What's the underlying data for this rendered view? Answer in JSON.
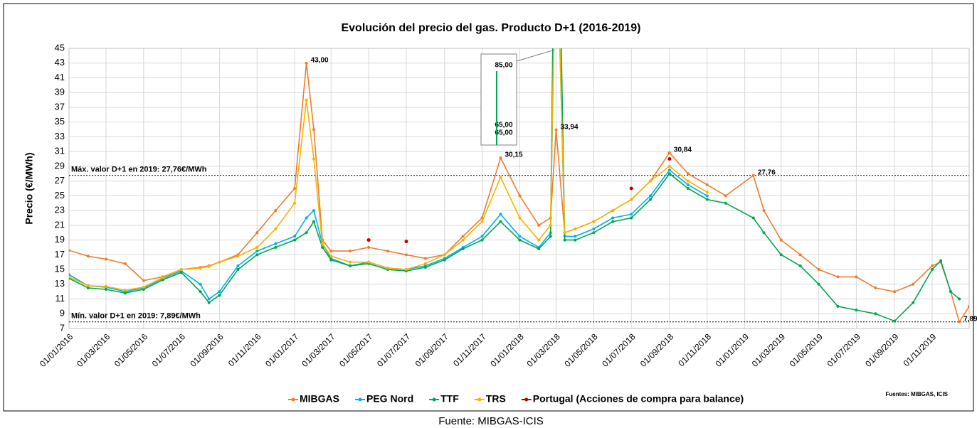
{
  "chart_data": {
    "type": "line",
    "title": "Evolución del precio del gas. Producto D+1 (2016-2019)",
    "y_label": "Precio (€/MWh)",
    "source_note": "Fuentes: MIBGAS, ICIS",
    "caption": "Fuente: MIBGAS-ICIS",
    "grid": true,
    "legend": "bottom",
    "ylim": [
      7,
      45
    ],
    "yticks": [
      7,
      9,
      11,
      13,
      15,
      17,
      19,
      21,
      23,
      25,
      27,
      29,
      31,
      33,
      35,
      37,
      39,
      41,
      43,
      45
    ],
    "xlim": [
      "01/01/2016",
      "31/12/2019"
    ],
    "xticks": [
      "01/01/2016",
      "01/03/2016",
      "01/05/2016",
      "01/07/2016",
      "01/09/2016",
      "01/11/2016",
      "01/01/2017",
      "01/03/2017",
      "01/05/2017",
      "01/07/2017",
      "01/09/2017",
      "01/11/2017",
      "01/01/2018",
      "01/03/2018",
      "01/05/2018",
      "01/07/2018",
      "01/09/2018",
      "01/11/2018",
      "01/01/2019",
      "01/03/2019",
      "01/05/2019",
      "01/07/2019",
      "01/09/2019",
      "01/11/2019"
    ],
    "reference_lines": [
      {
        "value": 27.76,
        "label": "Máx. valor D+1 en 2019: 27,76€/MWh"
      },
      {
        "value": 7.89,
        "label": "Mín. valor D+1 en 2019: 7,89€/MWh"
      }
    ],
    "x": [
      "01/01/2016",
      "01/02/2016",
      "01/03/2016",
      "01/04/2016",
      "01/05/2016",
      "01/06/2016",
      "01/07/2016",
      "01/08/2016",
      "15/08/2016",
      "01/09/2016",
      "01/10/2016",
      "01/11/2016",
      "01/12/2016",
      "01/01/2017",
      "20/01/2017",
      "01/02/2017",
      "15/02/2017",
      "01/03/2017",
      "01/04/2017",
      "01/05/2017",
      "01/06/2017",
      "01/07/2017",
      "01/08/2017",
      "01/09/2017",
      "01/10/2017",
      "01/11/2017",
      "01/12/2017",
      "01/01/2018",
      "01/02/2018",
      "20/02/2018",
      "01/03/2018",
      "15/03/2018",
      "01/04/2018",
      "01/05/2018",
      "01/06/2018",
      "01/07/2018",
      "01/08/2018",
      "01/09/2018",
      "01/10/2018",
      "01/11/2018",
      "01/12/2018",
      "15/01/2019",
      "01/02/2019",
      "01/03/2019",
      "01/04/2019",
      "01/05/2019",
      "01/06/2019",
      "01/07/2019",
      "01/08/2019",
      "01/09/2019",
      "01/10/2019",
      "01/11/2019",
      "15/11/2019",
      "01/12/2019",
      "15/12/2019",
      "31/12/2019"
    ],
    "series": [
      {
        "name": "MIBGAS",
        "color": "#ed7d31",
        "style": "line",
        "values": [
          17.6,
          16.8,
          16.4,
          15.8,
          13.5,
          14.0,
          15.0,
          15.3,
          15.5,
          16.0,
          17.0,
          20.0,
          23.0,
          26.0,
          43.0,
          34.0,
          19.0,
          17.5,
          17.5,
          18.0,
          17.5,
          17.0,
          16.5,
          17.0,
          19.5,
          22.0,
          30.15,
          25.0,
          21.0,
          22.0,
          33.94,
          20.0,
          20.5,
          21.5,
          23.0,
          24.5,
          27.0,
          30.84,
          28.0,
          26.5,
          25.0,
          27.76,
          23.0,
          19.0,
          17.0,
          15.0,
          14.0,
          14.0,
          12.5,
          12.0,
          13.0,
          15.5,
          16.0,
          12.0,
          7.89,
          10.0
        ],
        "value_labels": [
          null,
          null,
          null,
          null,
          null,
          null,
          null,
          null,
          null,
          null,
          null,
          null,
          null,
          null,
          "43,00",
          null,
          null,
          null,
          null,
          null,
          null,
          null,
          null,
          null,
          null,
          null,
          "30,15",
          null,
          null,
          null,
          "33,94",
          null,
          null,
          null,
          null,
          null,
          null,
          "30,84",
          null,
          null,
          null,
          "27,76",
          null,
          null,
          null,
          null,
          null,
          null,
          null,
          null,
          null,
          null,
          null,
          null,
          "7,89",
          null
        ]
      },
      {
        "name": "PEG Nord",
        "color": "#00b0f0",
        "style": "line",
        "values": [
          14.3,
          12.8,
          12.6,
          12.0,
          12.5,
          13.8,
          14.8,
          13.0,
          11.0,
          12.0,
          15.5,
          17.5,
          18.5,
          19.5,
          22.0,
          23.0,
          18.5,
          16.5,
          15.5,
          16.0,
          15.2,
          15.0,
          15.5,
          16.5,
          18.0,
          19.5,
          22.5,
          19.5,
          18.0,
          20.0,
          65,
          19.5,
          19.5,
          20.5,
          22.0,
          22.5,
          25.0,
          28.5,
          26.5,
          25.0,
          null,
          null,
          null,
          null,
          null,
          null,
          null,
          null,
          null,
          null,
          null,
          null,
          null,
          null,
          null,
          null
        ],
        "value_labels": [
          null,
          null,
          null,
          null,
          null,
          null,
          null,
          null,
          null,
          null,
          null,
          null,
          null,
          null,
          null,
          null,
          null,
          null,
          null,
          null,
          null,
          null,
          null,
          null,
          null,
          null,
          null,
          null,
          null,
          null,
          "65,00",
          null,
          null,
          null,
          null,
          null,
          null,
          null,
          null,
          null,
          null,
          null,
          null,
          null,
          null,
          null,
          null,
          null,
          null,
          null,
          null,
          null,
          null,
          null,
          null,
          null
        ]
      },
      {
        "name": "TTF",
        "color": "#00a651",
        "style": "line",
        "values": [
          13.8,
          12.5,
          12.3,
          11.8,
          12.3,
          13.6,
          14.6,
          12.0,
          10.5,
          11.5,
          15.0,
          17.0,
          18.0,
          19.0,
          20.0,
          21.5,
          18.0,
          16.3,
          15.5,
          15.8,
          15.0,
          14.8,
          15.3,
          16.3,
          17.8,
          19.0,
          21.5,
          19.0,
          17.8,
          19.5,
          85,
          19.0,
          19.0,
          20.0,
          21.5,
          22.0,
          24.5,
          28.0,
          26.0,
          24.5,
          24.0,
          22.0,
          20.0,
          17.0,
          15.5,
          13.0,
          10.0,
          9.5,
          9.0,
          8.0,
          10.5,
          15.0,
          16.2,
          12.0,
          11.0,
          null
        ],
        "value_labels": [
          null,
          null,
          null,
          null,
          null,
          null,
          null,
          null,
          null,
          null,
          null,
          null,
          null,
          null,
          null,
          null,
          null,
          null,
          null,
          null,
          null,
          null,
          null,
          null,
          null,
          null,
          null,
          null,
          null,
          null,
          "85,00",
          null,
          null,
          null,
          null,
          null,
          null,
          null,
          null,
          null,
          null,
          null,
          null,
          null,
          null,
          null,
          null,
          null,
          null,
          null,
          null,
          null,
          null,
          null,
          null,
          null
        ]
      },
      {
        "name": "TRS",
        "color": "#f4b400",
        "style": "line",
        "values": [
          14.0,
          12.8,
          12.7,
          12.2,
          12.6,
          13.9,
          15.0,
          15.2,
          15.4,
          16.0,
          16.8,
          18.0,
          20.5,
          24.0,
          38.0,
          30.0,
          18.5,
          16.8,
          16.0,
          16.0,
          15.2,
          15.0,
          15.8,
          17.0,
          19.0,
          21.5,
          27.5,
          22.0,
          19.0,
          21.0,
          65,
          20.0,
          20.5,
          21.5,
          23.0,
          24.5,
          27.0,
          29.0,
          27.0,
          25.5,
          null,
          null,
          null,
          null,
          null,
          null,
          null,
          null,
          null,
          null,
          null,
          null,
          null,
          null,
          null,
          null
        ],
        "value_labels": [
          null,
          null,
          null,
          null,
          null,
          null,
          null,
          null,
          null,
          null,
          null,
          null,
          null,
          null,
          null,
          null,
          null,
          null,
          null,
          null,
          null,
          null,
          null,
          null,
          null,
          null,
          null,
          null,
          null,
          null,
          "65,00",
          null,
          null,
          null,
          null,
          null,
          null,
          null,
          null,
          null,
          null,
          null,
          null,
          null,
          null,
          null,
          null,
          null,
          null,
          null,
          null,
          null,
          null,
          null,
          null,
          null
        ]
      },
      {
        "name": "Portugal (Acciones de compra para balance)",
        "color": "#c00000",
        "style": "points",
        "values": [
          null,
          null,
          null,
          null,
          null,
          null,
          null,
          null,
          null,
          null,
          null,
          null,
          null,
          null,
          null,
          null,
          null,
          null,
          null,
          19.0,
          null,
          18.8,
          null,
          null,
          null,
          null,
          null,
          null,
          null,
          null,
          null,
          null,
          null,
          null,
          null,
          26.0,
          null,
          30.0,
          null,
          null,
          null,
          null,
          null,
          null,
          null,
          null,
          null,
          null,
          null,
          null,
          null,
          null,
          null,
          null,
          null,
          null
        ]
      }
    ]
  }
}
